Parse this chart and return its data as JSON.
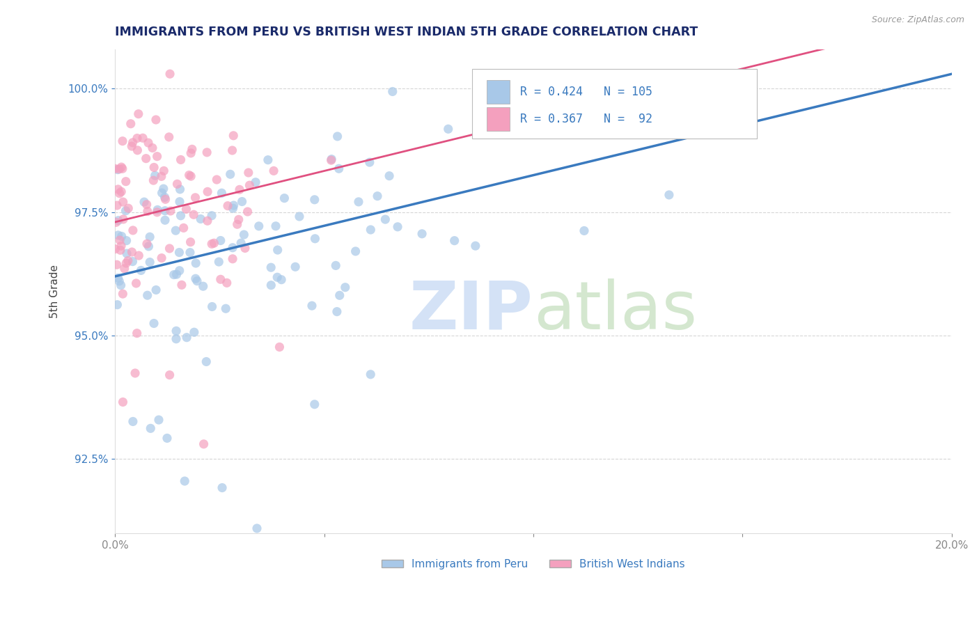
{
  "title": "IMMIGRANTS FROM PERU VS BRITISH WEST INDIAN 5TH GRADE CORRELATION CHART",
  "source": "Source: ZipAtlas.com",
  "ylabel": "5th Grade",
  "xlim": [
    0.0,
    0.2
  ],
  "ylim": [
    0.91,
    1.008
  ],
  "yticks": [
    0.925,
    0.95,
    0.975,
    1.0
  ],
  "ytick_labels": [
    "92.5%",
    "95.0%",
    "97.5%",
    "100.0%"
  ],
  "xticks": [
    0.0,
    0.05,
    0.1,
    0.15,
    0.2
  ],
  "xtick_labels": [
    "0.0%",
    "",
    "",
    "",
    "20.0%"
  ],
  "blue_R": 0.424,
  "blue_N": 105,
  "pink_R": 0.367,
  "pink_N": 92,
  "blue_color": "#a8c8e8",
  "pink_color": "#f4a0be",
  "blue_line_color": "#3a7abf",
  "pink_line_color": "#e05080",
  "legend_label_blue": "Immigrants from Peru",
  "legend_label_pink": "British West Indians",
  "title_color": "#1a2a6a",
  "axis_label_color": "#444444",
  "tick_color_y": "#3a7abf",
  "tick_color_x": "#888888",
  "legend_text_color": "#3a7abf",
  "background_color": "#ffffff",
  "grid_color": "#cccccc",
  "watermark_zip_color": "#b8d0f0",
  "watermark_atlas_color": "#b8d8b0"
}
